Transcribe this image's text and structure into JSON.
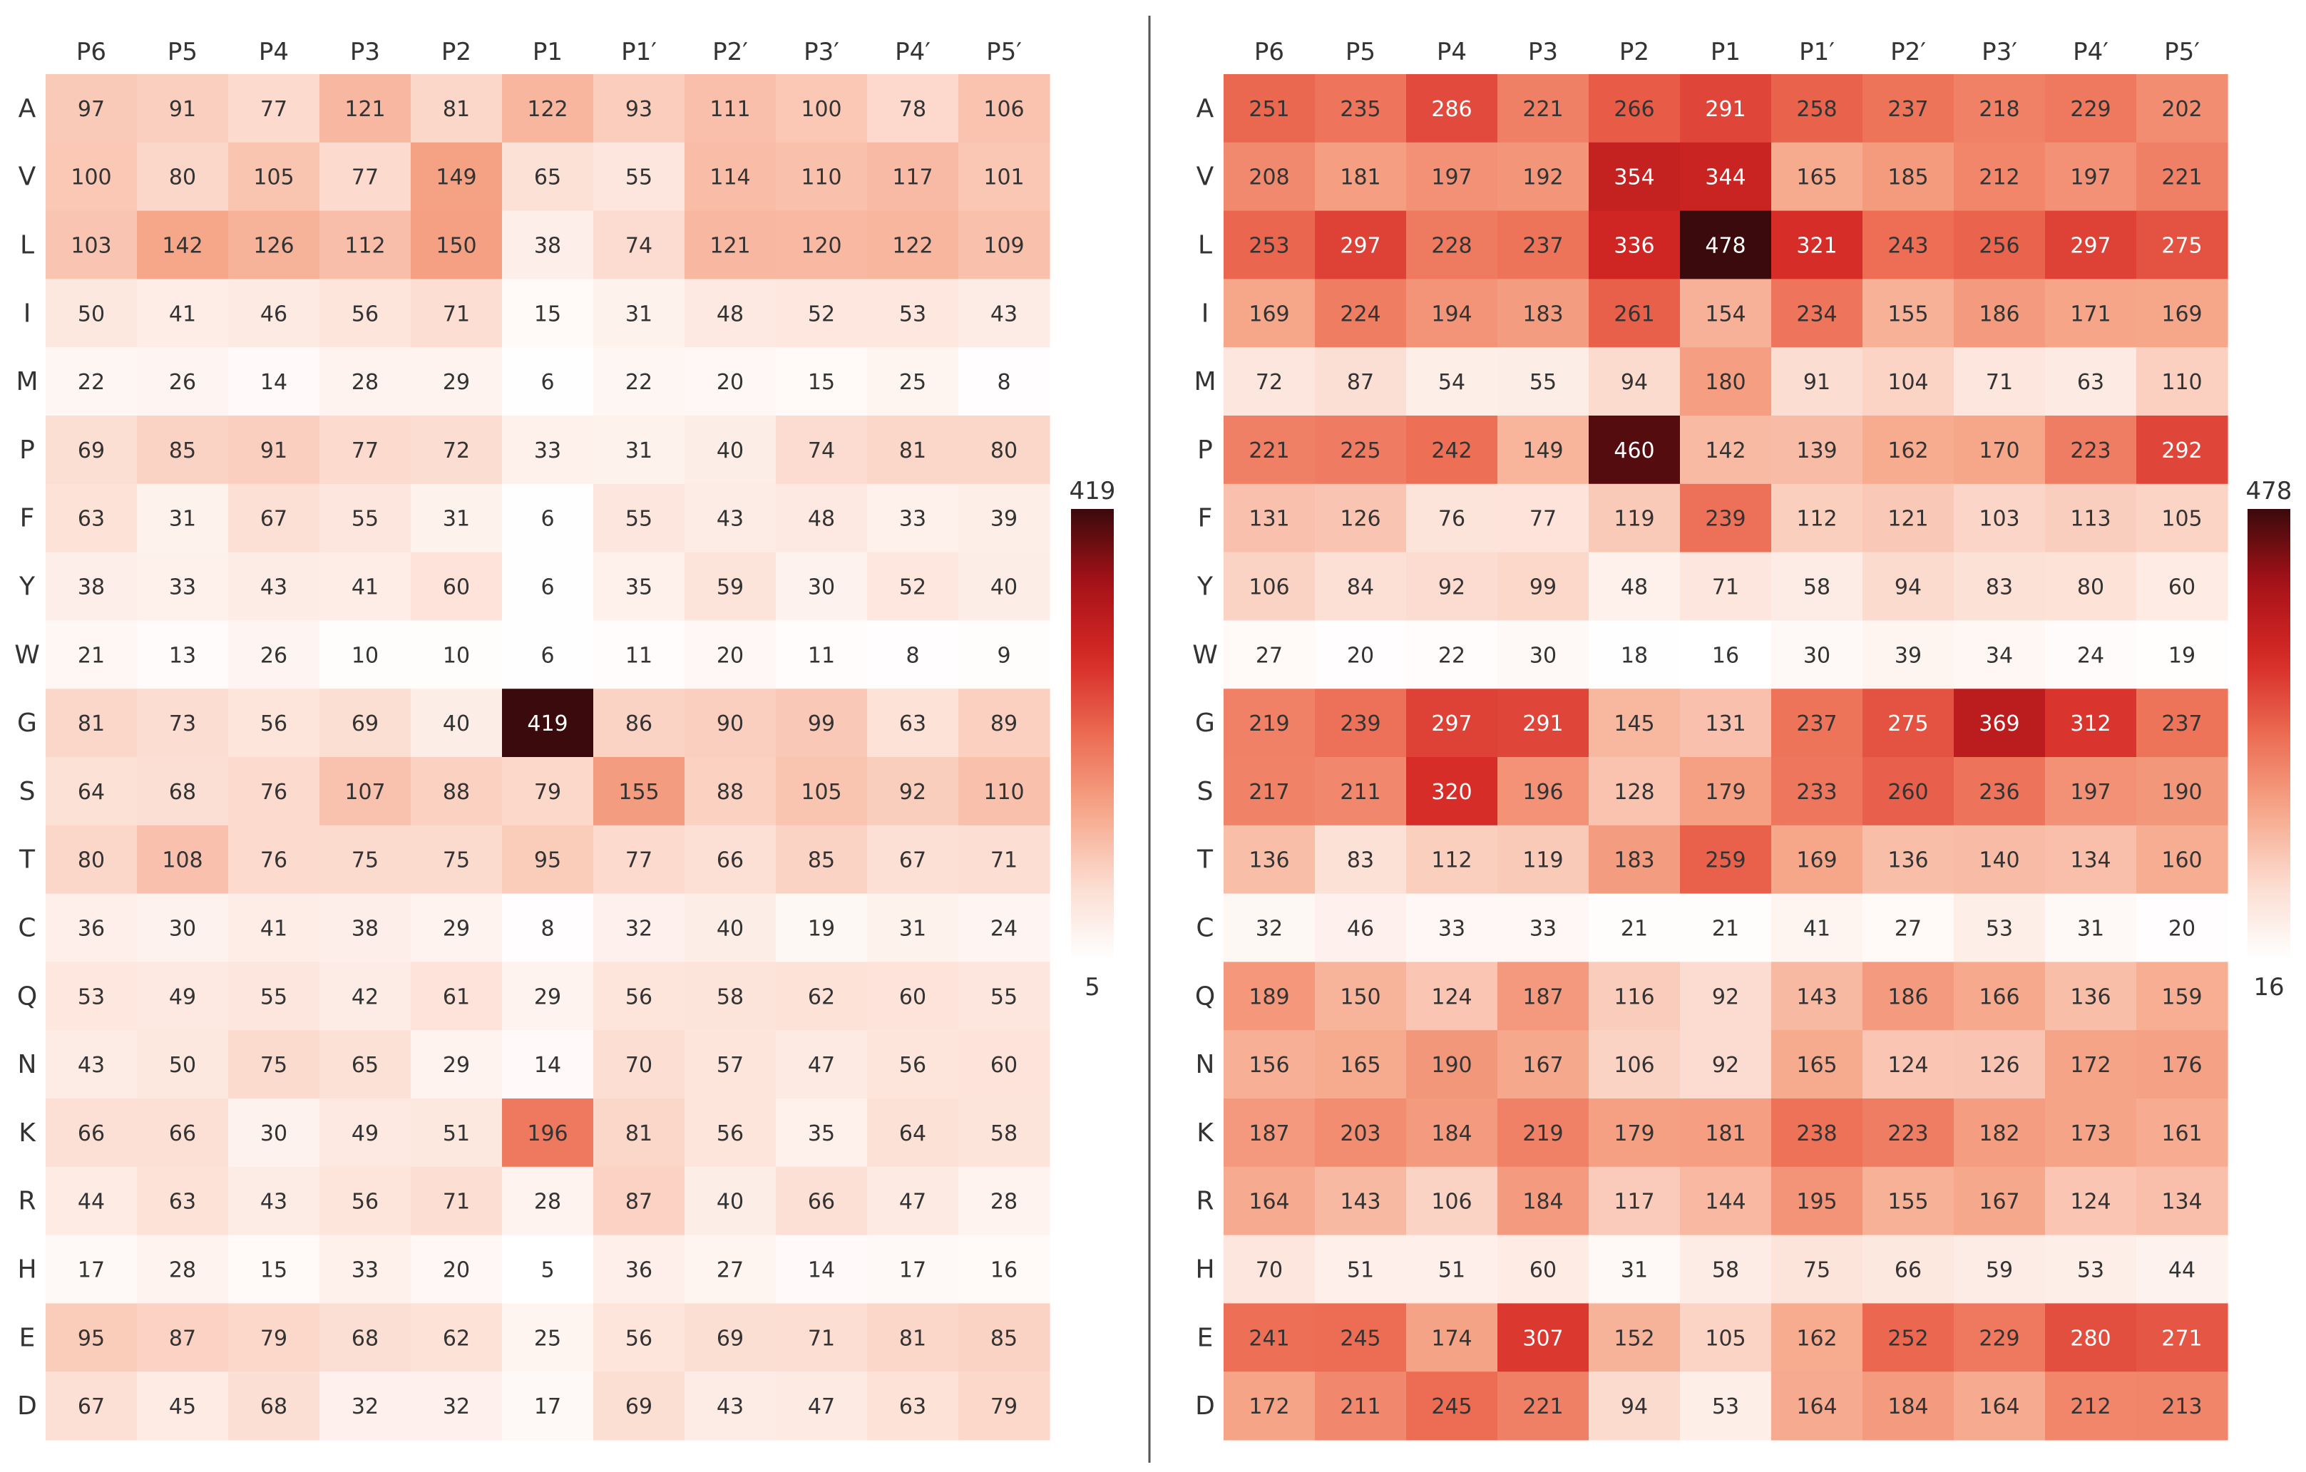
{
  "chart_data": [
    {
      "type": "heatmap",
      "columns": [
        "P6",
        "P5",
        "P4",
        "P3",
        "P2",
        "P1",
        "P1′",
        "P2′",
        "P3′",
        "P4′",
        "P5′"
      ],
      "rows": [
        "A",
        "V",
        "L",
        "I",
        "M",
        "P",
        "F",
        "Y",
        "W",
        "G",
        "S",
        "T",
        "C",
        "Q",
        "N",
        "K",
        "R",
        "H",
        "E",
        "D"
      ],
      "values": [
        [
          97,
          91,
          77,
          121,
          81,
          122,
          93,
          111,
          100,
          78,
          106
        ],
        [
          100,
          80,
          105,
          77,
          149,
          65,
          55,
          114,
          110,
          117,
          101
        ],
        [
          103,
          142,
          126,
          112,
          150,
          38,
          74,
          121,
          120,
          122,
          109
        ],
        [
          50,
          41,
          46,
          56,
          71,
          15,
          31,
          48,
          52,
          53,
          43
        ],
        [
          22,
          26,
          14,
          28,
          29,
          6,
          22,
          20,
          15,
          25,
          8
        ],
        [
          69,
          85,
          91,
          77,
          72,
          33,
          31,
          40,
          74,
          81,
          80
        ],
        [
          63,
          31,
          67,
          55,
          31,
          6,
          55,
          43,
          48,
          33,
          39
        ],
        [
          38,
          33,
          43,
          41,
          60,
          6,
          35,
          59,
          30,
          52,
          40
        ],
        [
          21,
          13,
          26,
          10,
          10,
          6,
          11,
          20,
          11,
          8,
          9
        ],
        [
          81,
          73,
          56,
          69,
          40,
          419,
          86,
          90,
          99,
          63,
          89
        ],
        [
          64,
          68,
          76,
          107,
          88,
          79,
          155,
          88,
          105,
          92,
          110
        ],
        [
          80,
          108,
          76,
          75,
          75,
          95,
          77,
          66,
          85,
          67,
          71
        ],
        [
          36,
          30,
          41,
          38,
          29,
          8,
          32,
          40,
          19,
          31,
          24
        ],
        [
          53,
          49,
          55,
          42,
          61,
          29,
          56,
          58,
          62,
          60,
          55
        ],
        [
          43,
          50,
          75,
          65,
          29,
          14,
          70,
          57,
          47,
          56,
          60
        ],
        [
          66,
          66,
          30,
          49,
          51,
          196,
          81,
          56,
          35,
          64,
          58
        ],
        [
          44,
          63,
          43,
          56,
          71,
          28,
          87,
          40,
          66,
          47,
          28
        ],
        [
          17,
          28,
          15,
          33,
          20,
          5,
          36,
          27,
          14,
          17,
          16
        ],
        [
          95,
          87,
          79,
          68,
          62,
          25,
          56,
          69,
          71,
          81,
          85
        ],
        [
          67,
          45,
          68,
          32,
          32,
          17,
          69,
          43,
          47,
          63,
          79
        ]
      ],
      "colorbar": {
        "min": 5,
        "max": 419,
        "min_label": "5",
        "max_label": "419"
      }
    },
    {
      "type": "heatmap",
      "columns": [
        "P6",
        "P5",
        "P4",
        "P3",
        "P2",
        "P1",
        "P1′",
        "P2′",
        "P3′",
        "P4′",
        "P5′"
      ],
      "rows": [
        "A",
        "V",
        "L",
        "I",
        "M",
        "P",
        "F",
        "Y",
        "W",
        "G",
        "S",
        "T",
        "C",
        "Q",
        "N",
        "K",
        "R",
        "H",
        "E",
        "D"
      ],
      "values": [
        [
          251,
          235,
          286,
          221,
          266,
          291,
          258,
          237,
          218,
          229,
          202
        ],
        [
          208,
          181,
          197,
          192,
          354,
          344,
          165,
          185,
          212,
          197,
          221
        ],
        [
          253,
          297,
          228,
          237,
          336,
          478,
          321,
          243,
          256,
          297,
          275
        ],
        [
          169,
          224,
          194,
          183,
          261,
          154,
          234,
          155,
          186,
          171,
          169
        ],
        [
          72,
          87,
          54,
          55,
          94,
          180,
          91,
          104,
          71,
          63,
          110
        ],
        [
          221,
          225,
          242,
          149,
          460,
          142,
          139,
          162,
          170,
          223,
          292
        ],
        [
          131,
          126,
          76,
          77,
          119,
          239,
          112,
          121,
          103,
          113,
          105
        ],
        [
          106,
          84,
          92,
          99,
          48,
          71,
          58,
          94,
          83,
          80,
          60
        ],
        [
          27,
          20,
          22,
          30,
          18,
          16,
          30,
          39,
          34,
          24,
          19
        ],
        [
          219,
          239,
          297,
          291,
          145,
          131,
          237,
          275,
          369,
          312,
          237
        ],
        [
          217,
          211,
          320,
          196,
          128,
          179,
          233,
          260,
          236,
          197,
          190
        ],
        [
          136,
          83,
          112,
          119,
          183,
          259,
          169,
          136,
          140,
          134,
          160
        ],
        [
          32,
          46,
          33,
          33,
          21,
          21,
          41,
          27,
          53,
          31,
          20
        ],
        [
          189,
          150,
          124,
          187,
          116,
          92,
          143,
          186,
          166,
          136,
          159
        ],
        [
          156,
          165,
          190,
          167,
          106,
          92,
          165,
          124,
          126,
          172,
          176
        ],
        [
          187,
          203,
          184,
          219,
          179,
          181,
          238,
          223,
          182,
          173,
          161
        ],
        [
          164,
          143,
          106,
          184,
          117,
          144,
          195,
          155,
          167,
          124,
          134
        ],
        [
          70,
          51,
          51,
          60,
          31,
          58,
          75,
          66,
          59,
          53,
          44
        ],
        [
          241,
          245,
          174,
          307,
          152,
          105,
          162,
          252,
          229,
          280,
          271
        ],
        [
          172,
          211,
          245,
          221,
          94,
          53,
          164,
          184,
          164,
          212,
          213
        ]
      ],
      "colorbar": {
        "min": 16,
        "max": 478,
        "min_label": "16",
        "max_label": "478"
      }
    }
  ],
  "colors": {
    "scale": [
      "#ffffff",
      "#fcdcd0",
      "#f6a689",
      "#ec6b52",
      "#d62a26",
      "#a81218",
      "#3a0a0c"
    ],
    "divider": "#555555"
  }
}
